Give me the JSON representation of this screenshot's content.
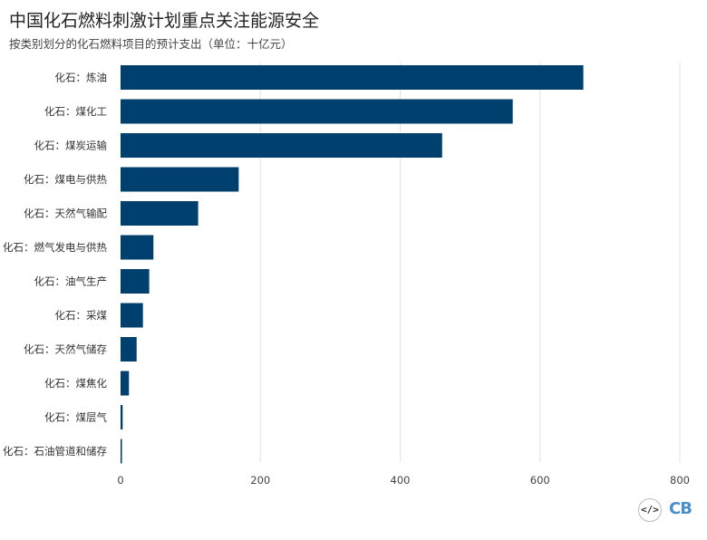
{
  "header": {
    "title": "中国化石燃料刺激计划重点关注能源安全",
    "subtitle": "按类别划分的化石燃料项目的预计支出（单位：十亿元）"
  },
  "footer": {
    "embed_icon": "code-embed-icon",
    "embed_label": "</>",
    "logo": "CB"
  },
  "chart_data": {
    "type": "bar",
    "orientation": "horizontal",
    "categories": [
      "化石：炼油",
      "化石：煤化工",
      "化石：煤炭运输",
      "化石：煤电与供热",
      "化石：天然气输配",
      "化石：燃气发电与供热",
      "化石：油气生产",
      "化石：采煤",
      "化石：天然气储存",
      "化石：煤焦化",
      "化石：煤层气",
      "化石：石油管道和储存"
    ],
    "values": [
      662,
      561,
      460,
      169,
      111,
      47,
      41,
      32,
      23,
      12,
      3,
      2
    ],
    "xlim": [
      0,
      800
    ],
    "xticks": [
      0,
      200,
      400,
      600,
      800
    ],
    "grid": true,
    "bar_color": "#00406e"
  }
}
